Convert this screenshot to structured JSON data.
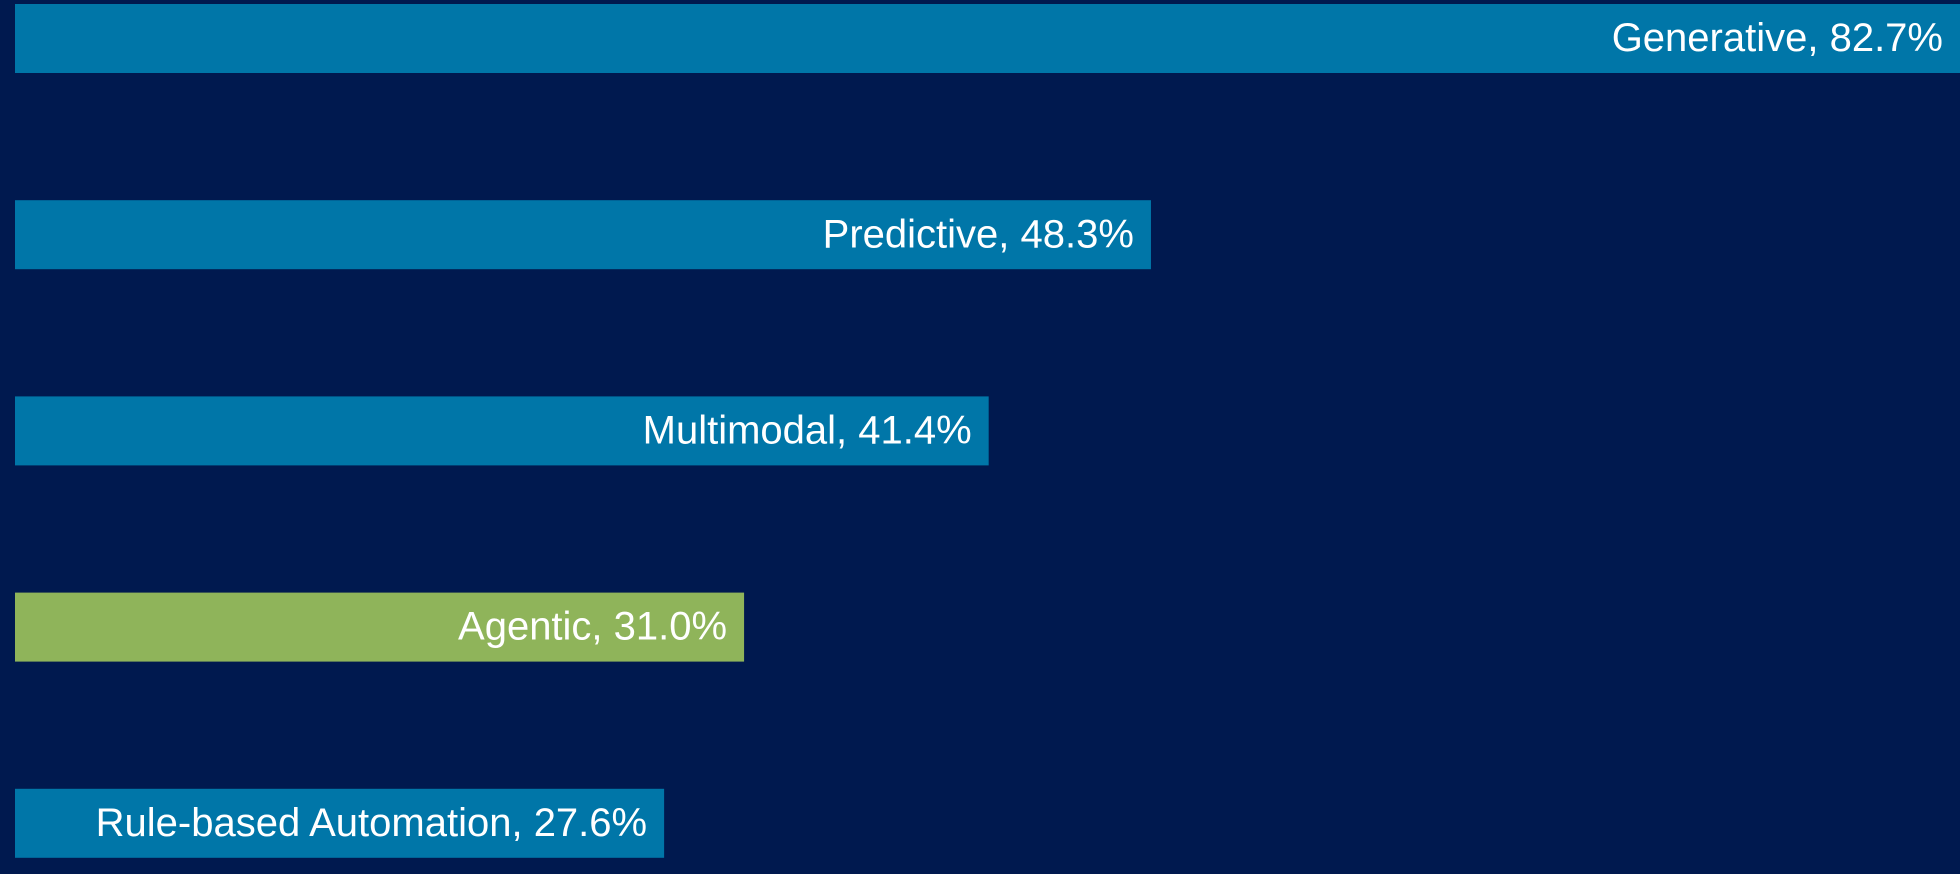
{
  "chart_data": {
    "type": "bar",
    "orientation": "horizontal",
    "values": [
      82.7,
      48.3,
      41.4,
      31.0,
      27.6
    ],
    "value_labels": [
      "Generative, 82.7%",
      "Predictive, 48.3%",
      "Multimodal, 41.4%",
      "Agentic, 31.0%",
      "Rule-based Automation, 27.6%"
    ],
    "colors": [
      "#0076a8",
      "#0076a8",
      "#0076a8",
      "#8fb45a",
      "#0076a8"
    ],
    "xlim": [
      0,
      82.7
    ]
  }
}
